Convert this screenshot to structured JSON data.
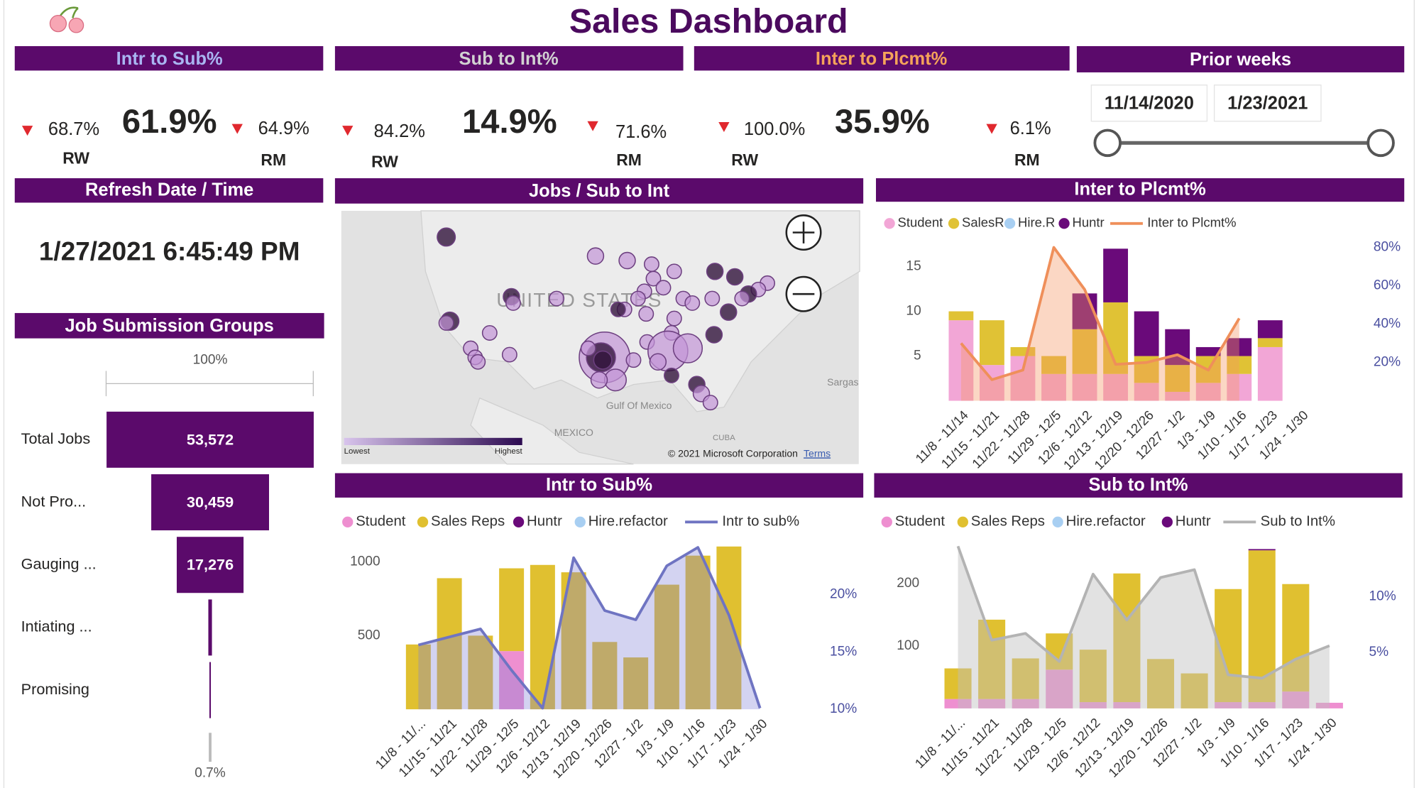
{
  "header": {
    "title": "Sales Dashboard"
  },
  "kpis": [
    {
      "title": "Intr to Sub%",
      "value": "61.9%",
      "left": {
        "value": "68.7%",
        "label": "RW"
      },
      "right": {
        "value": "64.9%",
        "label": "RM"
      }
    },
    {
      "title": "Sub to Int%",
      "value": "14.9%",
      "left": {
        "value": "84.2%",
        "label": "RW"
      },
      "right": {
        "value": "71.6%",
        "label": "RM"
      }
    },
    {
      "title": "Inter to Plcmt%",
      "value": "35.9%",
      "left": {
        "value": "100.0%",
        "label": "RW"
      },
      "right": {
        "value": "6.1%",
        "label": "RM"
      }
    }
  ],
  "prior_weeks": {
    "title": "Prior weeks",
    "start": "11/14/2020",
    "end": "1/23/2021"
  },
  "refresh": {
    "title": "Refresh Date / Time",
    "value": "1/27/2021 6:45:49 PM"
  },
  "map": {
    "title": "Jobs / Sub to Int",
    "country": "UNITED STATES",
    "labels": [
      "Gulf Of Mexico",
      "MEXICO",
      "CUBA",
      "Sargas"
    ],
    "copyright": "© 2021 Microsoft Corporation",
    "terms": "Terms",
    "legend_low": "Lowest",
    "legend_high": "Highest"
  },
  "chart_data": [
    {
      "type": "funnel",
      "title": "Job Submission Groups",
      "top_label": "100%",
      "bottom_label": "0.7%",
      "color": "#5b0a6b",
      "categories": [
        "Total Jobs",
        "Not Pro...",
        "Gauging ...",
        "Intiating ...",
        "Promising"
      ],
      "values": [
        53572,
        30459,
        17276,
        936,
        375
      ],
      "value_labels": [
        "53,572",
        "30,459",
        "17,276",
        null,
        null
      ]
    },
    {
      "type": "combo",
      "title": "Inter to Plcmt%",
      "categories": [
        "11/8 - 11/14",
        "11/15 - 11/21",
        "11/22 - 11/28",
        "11/29 - 12/5",
        "12/6 - 12/12",
        "12/13 - 12/19",
        "12/20 - 12/26",
        "12/27 - 1/2",
        "1/3 - 1/9",
        "1/10 - 1/16",
        "1/17 - 1/23",
        "1/24 - 1/30"
      ],
      "series": [
        {
          "name": "Student",
          "color": "#f2a6d6",
          "values": [
            9,
            4,
            5,
            3,
            3,
            3,
            2,
            1,
            2,
            3,
            6,
            0
          ]
        },
        {
          "name": "SalesR",
          "color": "#e0c235",
          "values": [
            1,
            5,
            1,
            2,
            5,
            8,
            3,
            3,
            3,
            2,
            1,
            0
          ]
        },
        {
          "name": "Hire.R",
          "color": "#a8cff2",
          "values": [
            0,
            0,
            0,
            0,
            0,
            0,
            0,
            0,
            0,
            0,
            0,
            0
          ]
        },
        {
          "name": "Huntr",
          "color": "#6a0a7a",
          "values": [
            0,
            0,
            0,
            0,
            4,
            6,
            5,
            4,
            1,
            2,
            2,
            0
          ]
        },
        {
          "name": "Inter to Plcmt%",
          "color": "#ef8f5a",
          "fill": "rgba(245,150,100,0.38)",
          "axis": "y2",
          "values": [
            30,
            11,
            16,
            80,
            58,
            19,
            20,
            24,
            16,
            43,
            null,
            null
          ]
        }
      ],
      "ylim": [
        0,
        18
      ],
      "yticks": [
        5,
        10,
        15
      ],
      "y2lim": [
        0,
        84
      ],
      "y2ticks": [
        {
          "value": 20,
          "label": "20%"
        },
        {
          "value": 40,
          "label": "40%"
        },
        {
          "value": 60,
          "label": "60%"
        },
        {
          "value": 80,
          "label": "80%"
        }
      ]
    },
    {
      "type": "combo",
      "title": "Intr to Sub%",
      "categories": [
        "11/8 - 11/...",
        "11/15 - 11/21",
        "11/22 - 11/28",
        "11/29 - 12/5",
        "12/6 - 12/12",
        "12/13 - 12/19",
        "12/20 - 12/26",
        "12/27 - 1/2",
        "1/3 - 1/9",
        "1/10 - 1/16",
        "1/17 - 1/23",
        "1/24 - 1/30"
      ],
      "series": [
        {
          "name": "Student",
          "color": "#ee8fd0",
          "values": [
            0,
            0,
            0,
            395,
            0,
            0,
            0,
            0,
            0,
            0,
            0,
            0
          ]
        },
        {
          "name": "Sales Reps",
          "color": "#e0c030",
          "values": [
            440,
            890,
            500,
            562,
            980,
            930,
            457,
            352,
            846,
            1043,
            1105,
            0
          ]
        },
        {
          "name": "Huntr",
          "color": "#6a0a7a",
          "values": [
            0,
            0,
            0,
            0,
            0,
            0,
            0,
            0,
            0,
            0,
            0,
            0
          ]
        },
        {
          "name": "Hire.refactor",
          "color": "#a8cff2",
          "values": [
            0,
            0,
            0,
            0,
            0,
            0,
            0,
            0,
            0,
            0,
            0,
            0
          ]
        },
        {
          "name": "Intr to sub%",
          "color": "#6f74c2",
          "fill": "rgba(130,130,215,0.35)",
          "axis": "y2",
          "values": [
            15.6,
            16.3,
            17,
            13.4,
            10.1,
            23.2,
            18.6,
            17.8,
            22.5,
            24.1,
            18.2,
            10.1
          ]
        }
      ],
      "ylim": [
        0,
        1130
      ],
      "yticks": [
        500,
        1000
      ],
      "y2lim": [
        10,
        24.5
      ],
      "y2ticks": [
        {
          "value": 10,
          "label": "10%"
        },
        {
          "value": 15,
          "label": "15%"
        },
        {
          "value": 20,
          "label": "20%"
        }
      ]
    },
    {
      "type": "combo",
      "title": "Sub to Int%",
      "categories": [
        "11/8 - 11/...",
        "11/15 - 11/21",
        "11/22 - 11/28",
        "11/29 - 12/5",
        "12/6 - 12/12",
        "12/13 - 12/19",
        "12/20 - 12/26",
        "12/27 - 1/2",
        "1/3 - 1/9",
        "1/10 - 1/16",
        "1/17 - 1/23",
        "1/24 - 1/30"
      ],
      "series": [
        {
          "name": "Student",
          "color": "#ee8fd0",
          "values": [
            15,
            15,
            15,
            62,
            10,
            10,
            0,
            0,
            10,
            10,
            27,
            9
          ]
        },
        {
          "name": "Sales Reps",
          "color": "#e0c030",
          "values": [
            49,
            127,
            65,
            58,
            84,
            206,
            79,
            56,
            181,
            243,
            172,
            0
          ]
        },
        {
          "name": "Hire.refactor",
          "color": "#a8cff2",
          "values": [
            0,
            0,
            0,
            0,
            0,
            0,
            0,
            0,
            0,
            0,
            0,
            0
          ]
        },
        {
          "name": "Huntr",
          "color": "#6a0a7a",
          "values": [
            0,
            0,
            0,
            0,
            0,
            0,
            0,
            0,
            0,
            2,
            0,
            0
          ]
        },
        {
          "name": "Sub to Int%",
          "color": "#b3b3b3",
          "fill": "rgba(190,190,190,0.45)",
          "axis": "y2",
          "values": [
            14.5,
            6.1,
            6.7,
            4.2,
            12,
            7.9,
            11.7,
            12.4,
            3,
            2.7,
            4.4,
            5.6
          ]
        }
      ],
      "ylim": [
        0,
        265
      ],
      "yticks": [
        100,
        200
      ],
      "y2lim": [
        0,
        14.8
      ],
      "y2ticks": [
        {
          "value": 5,
          "label": "5%"
        },
        {
          "value": 10,
          "label": "10%"
        }
      ]
    }
  ]
}
